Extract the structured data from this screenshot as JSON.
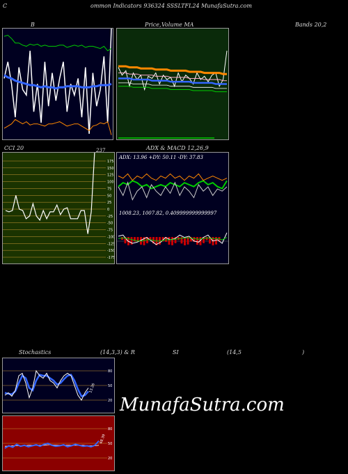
{
  "header": {
    "c": "C",
    "title": "ommon  Indicators 936324  SSSLTFL24  MunafaSutra.com"
  },
  "labels": {
    "bb": "B",
    "price_ma": "Price,",
    "price_ma2": "Volume  MA",
    "bands": "Bands 20,2",
    "cci": "CCI 20",
    "cci_val": "237",
    "adx": "ADX  & MACD 12,26,9",
    "stoch_a": "Stochastics",
    "stoch_b": "(14,3,3) & R",
    "rsi_a": "SI",
    "rsi_b": "(14,5",
    "rsi_c": ")"
  },
  "brand": "MunafaSutra.com",
  "colors": {
    "green_bg": "#0a2a0a",
    "dark_green_bg": "#1a3300",
    "navy_bg": "#000020",
    "red_bg": "#8b0000",
    "blue": "#3366ff",
    "orange": "#ff8800",
    "green": "#00cc00"
  },
  "chart_data": [
    {
      "type": "line",
      "name": "bollinger",
      "title": "B",
      "series": [
        {
          "values": [
            0.45,
            0.3,
            0.5,
            0.8,
            0.35,
            0.55,
            0.6,
            0.2,
            0.75,
            0.5,
            0.85,
            0.3,
            0.7,
            0.4,
            0.65,
            0.45,
            0.3,
            0.75,
            0.5,
            0.6,
            0.45,
            0.8,
            0.35,
            0.95,
            0.4,
            0.7,
            0.55,
            0.25,
            0.85,
            0.0
          ],
          "color": "#ffffff"
        },
        {
          "values": [
            0.42,
            0.44,
            0.45,
            0.47,
            0.48,
            0.49,
            0.5,
            0.51,
            0.51,
            0.52,
            0.53,
            0.52,
            0.53,
            0.53,
            0.54,
            0.53,
            0.53,
            0.52,
            0.52,
            0.52,
            0.52,
            0.53,
            0.53,
            0.53,
            0.52,
            0.52,
            0.51,
            0.51,
            0.51,
            0.5
          ],
          "color": "#3366ff"
        },
        {
          "values": [
            0.07,
            0.06,
            0.09,
            0.13,
            0.13,
            0.15,
            0.16,
            0.14,
            0.15,
            0.14,
            0.16,
            0.15,
            0.16,
            0.16,
            0.16,
            0.15,
            0.15,
            0.17,
            0.16,
            0.15,
            0.16,
            0.15,
            0.17,
            0.16,
            0.16,
            0.17,
            0.18,
            0.16,
            0.2,
            0.18
          ],
          "color": "#00cc00"
        },
        {
          "values": [
            0.9,
            0.88,
            0.86,
            0.82,
            0.84,
            0.86,
            0.84,
            0.87,
            0.86,
            0.86,
            0.87,
            0.88,
            0.86,
            0.86,
            0.85,
            0.84,
            0.86,
            0.88,
            0.87,
            0.86,
            0.86,
            0.88,
            0.9,
            0.92,
            0.88,
            0.87,
            0.85,
            0.86,
            0.84,
            0.96
          ],
          "color": "#ff8800"
        }
      ]
    },
    {
      "type": "line",
      "name": "price_ma",
      "title": "Price, Volume MA",
      "series": [
        {
          "values": [
            0.35,
            0.42,
            0.38,
            0.52,
            0.4,
            0.46,
            0.42,
            0.55,
            0.43,
            0.45,
            0.4,
            0.5,
            0.42,
            0.46,
            0.44,
            0.52,
            0.4,
            0.48,
            0.42,
            0.45,
            0.5,
            0.4,
            0.46,
            0.43,
            0.48,
            0.42,
            0.4,
            0.52,
            0.46,
            0.2
          ],
          "color": "#ffffff"
        },
        {
          "values": [
            0.34,
            0.34,
            0.34,
            0.35,
            0.35,
            0.35,
            0.36,
            0.36,
            0.36,
            0.36,
            0.37,
            0.37,
            0.37,
            0.37,
            0.38,
            0.38,
            0.38,
            0.38,
            0.38,
            0.39,
            0.39,
            0.39,
            0.39,
            0.4,
            0.4,
            0.4,
            0.4,
            0.4,
            0.41,
            0.41
          ],
          "color": "#ff8800"
        },
        {
          "values": [
            0.45,
            0.45,
            0.45,
            0.45,
            0.46,
            0.46,
            0.46,
            0.46,
            0.46,
            0.47,
            0.47,
            0.47,
            0.47,
            0.47,
            0.48,
            0.48,
            0.48,
            0.48,
            0.48,
            0.48,
            0.49,
            0.49,
            0.49,
            0.49,
            0.49,
            0.49,
            0.5,
            0.5,
            0.5,
            0.5
          ],
          "color": "#3366ff"
        }
      ]
    },
    {
      "type": "line",
      "name": "cci",
      "title": "CCI 20",
      "ylim": [
        -175,
        175
      ],
      "yticks": [
        175,
        150,
        125,
        100,
        75,
        50,
        25,
        0,
        -25,
        -50,
        -75,
        -100,
        -125,
        -150,
        -175
      ],
      "series": [
        {
          "values": [
            -5,
            -10,
            -5,
            50,
            0,
            -5,
            -35,
            -25,
            20,
            -25,
            -40,
            -5,
            -35,
            -10,
            -10,
            15,
            -20,
            0,
            5,
            -35,
            -35,
            -35,
            -5,
            -5,
            -90,
            -10,
            230
          ],
          "color": "#ffffff"
        }
      ]
    },
    {
      "type": "line",
      "name": "adx_macd",
      "title": "ADX & MACD 12,26,9",
      "annotations": [
        "ADX: 13.96  +DY: 50.11 -DY: 37.83",
        "1008.23,  1007.82,  0.409999999999997"
      ]
    },
    {
      "type": "line",
      "name": "stochastics",
      "title": "Stochastics (14,3,3)",
      "yticks": [
        80,
        50,
        20
      ],
      "annotation": "13.26"
    },
    {
      "type": "line",
      "name": "rsi",
      "title": "RSI (14,5)",
      "yticks": [
        80,
        50,
        20
      ],
      "annotation": "48.39"
    }
  ]
}
